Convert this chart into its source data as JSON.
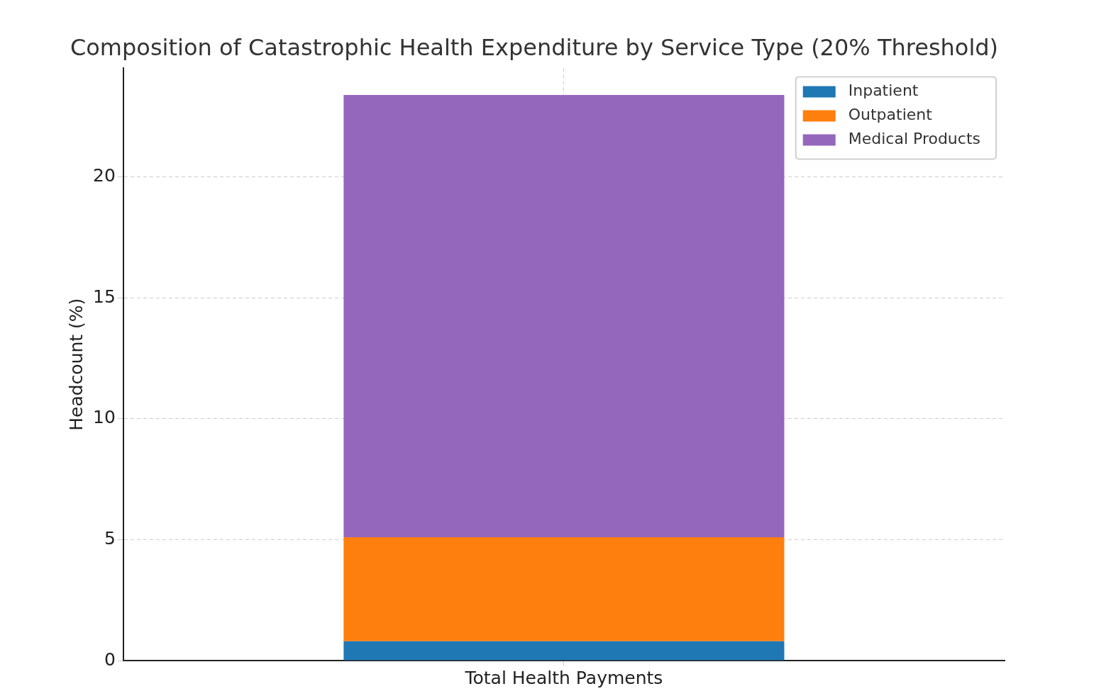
{
  "chart_data": {
    "type": "bar",
    "title": "Composition of Catastrophic Health Expenditure by Service Type (20% Threshold)",
    "ylabel": "Headcount (%)",
    "categories": [
      "Total Health Payments"
    ],
    "stacked": true,
    "series": [
      {
        "name": "Inpatient",
        "color": "#1f77b4",
        "values": [
          0.8
        ]
      },
      {
        "name": "Outpatient",
        "color": "#ff7f0e",
        "values": [
          4.3
        ]
      },
      {
        "name": "Medical Products",
        "color": "#9467bd",
        "values": [
          18.3
        ]
      }
    ],
    "ylim": [
      0,
      24.5
    ],
    "yticks": [
      0,
      5,
      10,
      15,
      20
    ],
    "grid": true,
    "legend": "top right"
  }
}
